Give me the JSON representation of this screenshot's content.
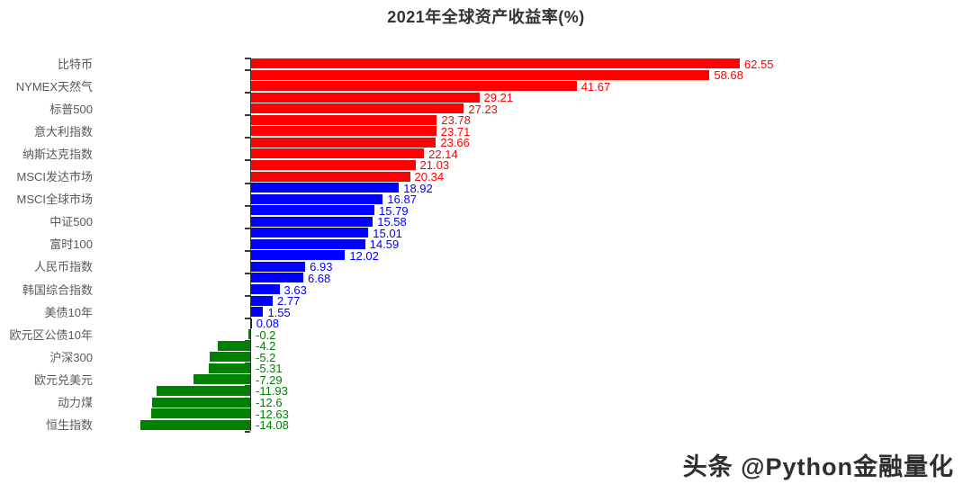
{
  "page": {
    "title": "2021年全球资产收益率(%)",
    "watermark": "头条 @Python金融量化"
  },
  "chart_data": {
    "type": "bar",
    "orientation": "horizontal",
    "title": "2021年全球资产收益率(%)",
    "xlabel": "",
    "ylabel": "",
    "xlim": [
      -20,
      70
    ],
    "grid": false,
    "legend": false,
    "value_labels_shown": true,
    "colors": {
      "positive_high": "#ff0000",
      "positive_low": "#0000ff",
      "negative": "#008000",
      "high_threshold": 20
    },
    "axis": {
      "line_color": "#2f2f2f",
      "label_color": "#595959"
    },
    "items": [
      {
        "label": "比特币",
        "value": 62.55
      },
      {
        "label": "",
        "value": 58.68
      },
      {
        "label": "NYMEX天然气",
        "value": 41.67
      },
      {
        "label": "",
        "value": 29.21
      },
      {
        "label": "标普500",
        "value": 27.23
      },
      {
        "label": "",
        "value": 23.78
      },
      {
        "label": "意大利指数",
        "value": 23.71
      },
      {
        "label": "",
        "value": 23.66
      },
      {
        "label": "纳斯达克指数",
        "value": 22.14
      },
      {
        "label": "",
        "value": 21.03
      },
      {
        "label": "MSCI发达市场",
        "value": 20.34
      },
      {
        "label": "",
        "value": 18.92
      },
      {
        "label": "MSCI全球市场",
        "value": 16.87
      },
      {
        "label": "",
        "value": 15.79
      },
      {
        "label": "中证500",
        "value": 15.58
      },
      {
        "label": "",
        "value": 15.01
      },
      {
        "label": "富时100",
        "value": 14.59
      },
      {
        "label": "",
        "value": 12.02
      },
      {
        "label": "人民币指数",
        "value": 6.93
      },
      {
        "label": "",
        "value": 6.68
      },
      {
        "label": "韩国综合指数",
        "value": 3.63
      },
      {
        "label": "",
        "value": 2.77
      },
      {
        "label": "美债10年",
        "value": 1.55
      },
      {
        "label": "",
        "value": 0.08
      },
      {
        "label": "欧元区公债10年",
        "value": -0.2
      },
      {
        "label": "",
        "value": -4.2
      },
      {
        "label": "沪深300",
        "value": -5.2
      },
      {
        "label": "",
        "value": -5.31
      },
      {
        "label": "欧元兑美元",
        "value": -7.29
      },
      {
        "label": "",
        "value": -11.93
      },
      {
        "label": "动力煤",
        "value": -12.6
      },
      {
        "label": "",
        "value": -12.63
      },
      {
        "label": "恒生指数",
        "value": -14.08
      }
    ]
  }
}
